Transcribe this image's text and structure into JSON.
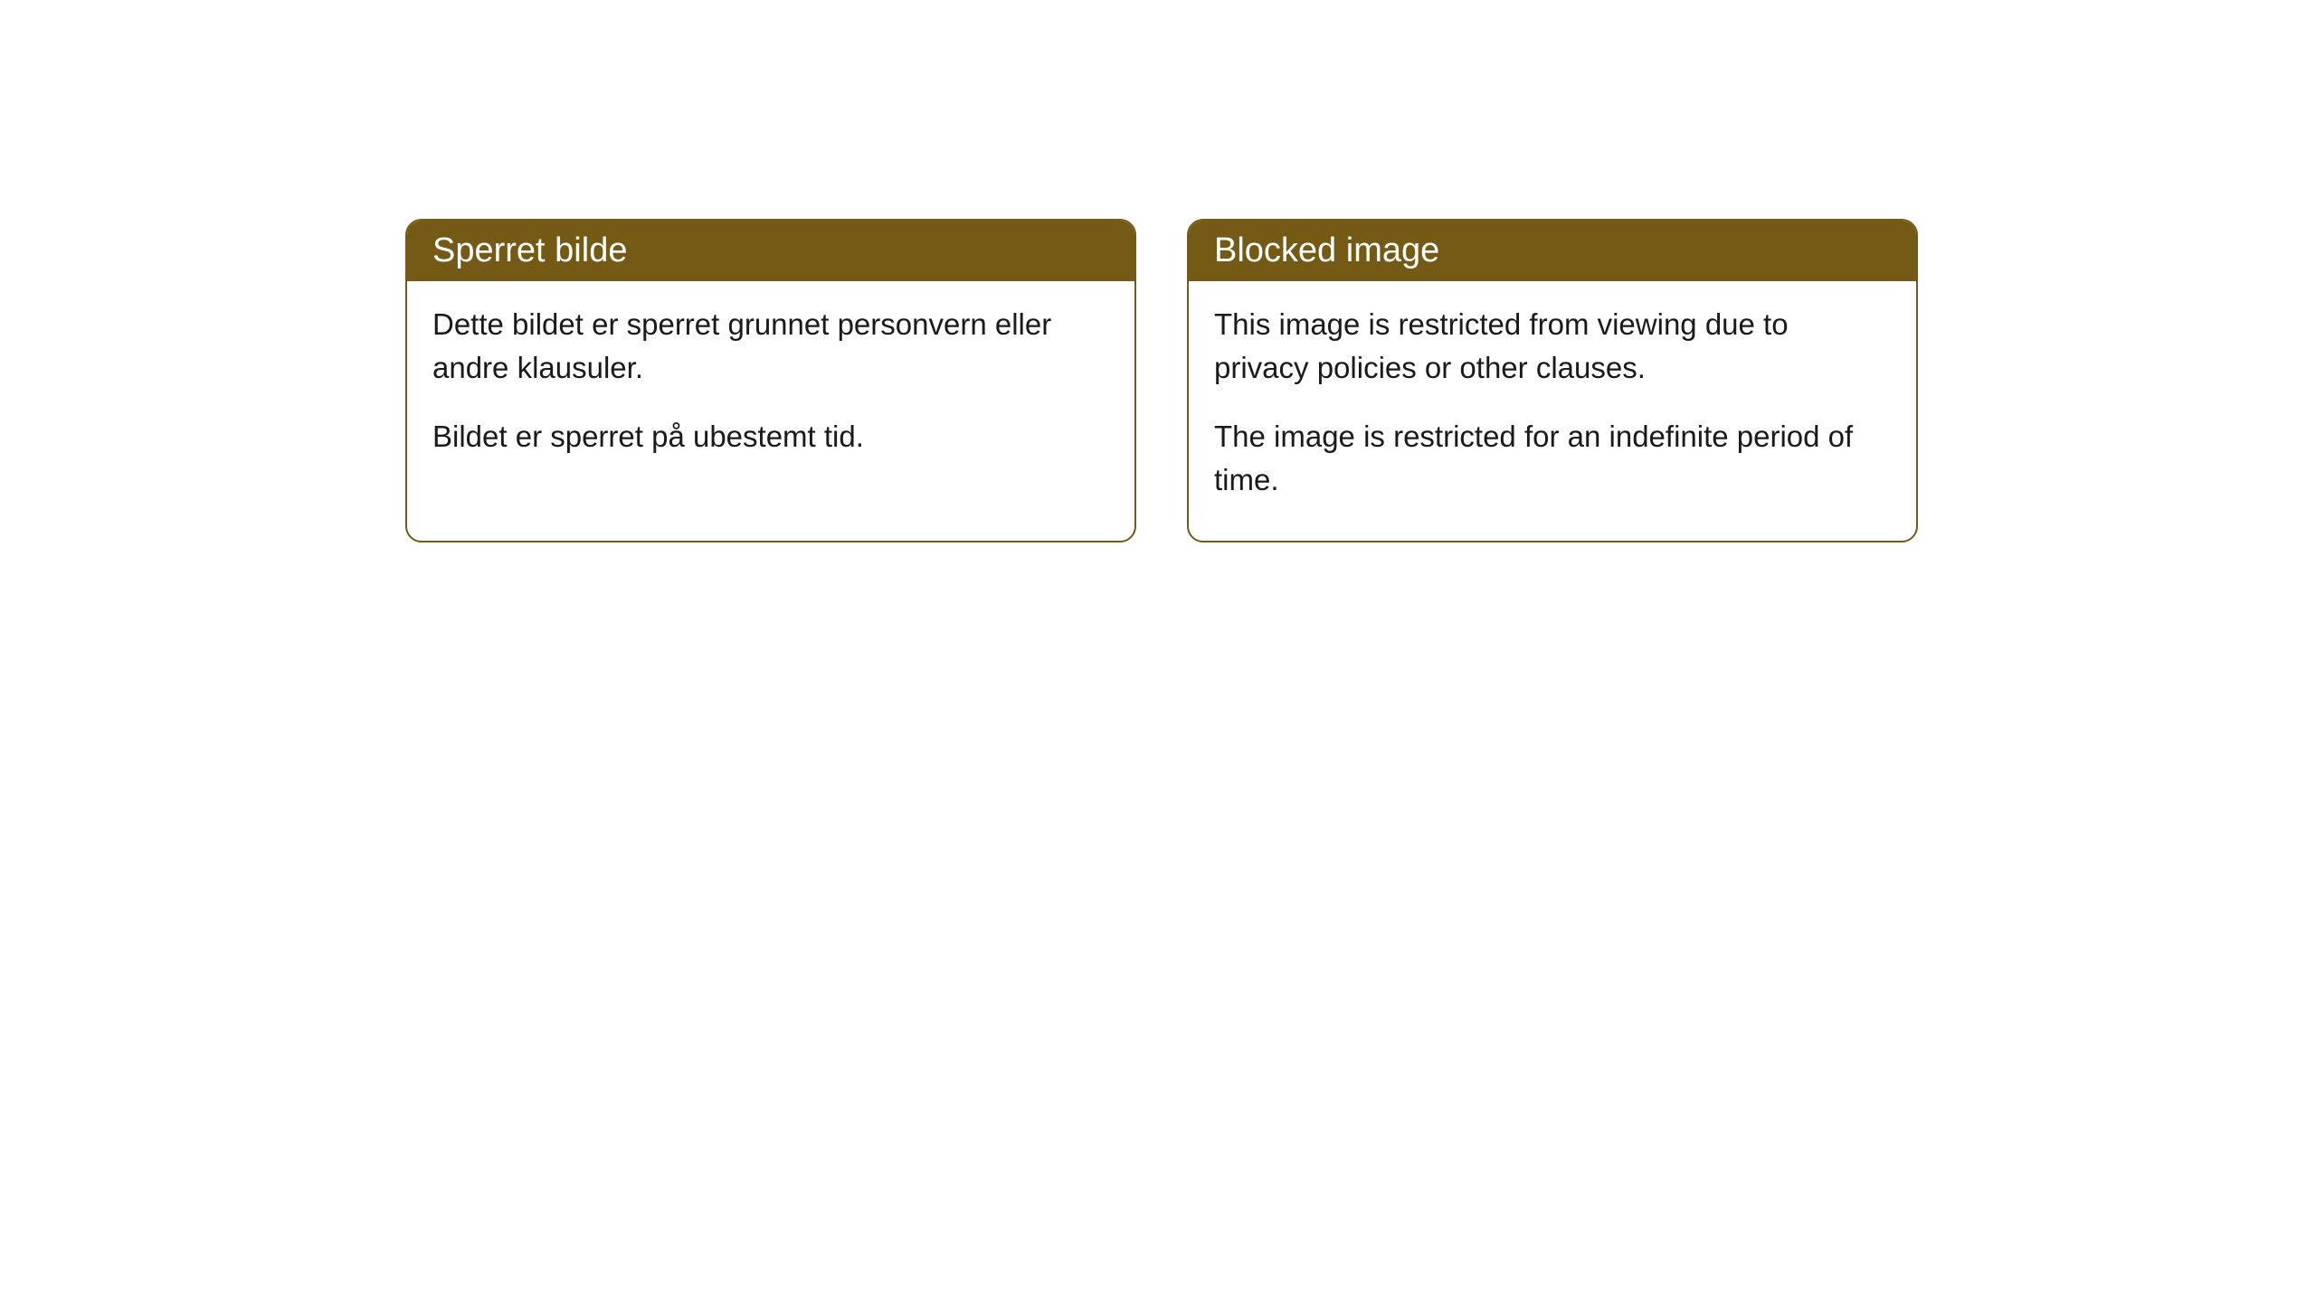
{
  "cards": [
    {
      "title": "Sperret bilde",
      "paragraph1": "Dette bildet er sperret grunnet personvern eller andre klausuler.",
      "paragraph2": "Bildet er sperret på ubestemt tid."
    },
    {
      "title": "Blocked image",
      "paragraph1": "This image is restricted from viewing due to privacy policies or other clauses.",
      "paragraph2": "The image is restricted for an indefinite period of time."
    }
  ],
  "style": {
    "header_background": "#745a14",
    "header_text_color": "#ffffff",
    "border_color": "#745a14",
    "body_background": "#ffffff",
    "body_text_color": "#1a1a1a",
    "border_radius": 18,
    "title_fontsize": 38,
    "body_fontsize": 33
  }
}
